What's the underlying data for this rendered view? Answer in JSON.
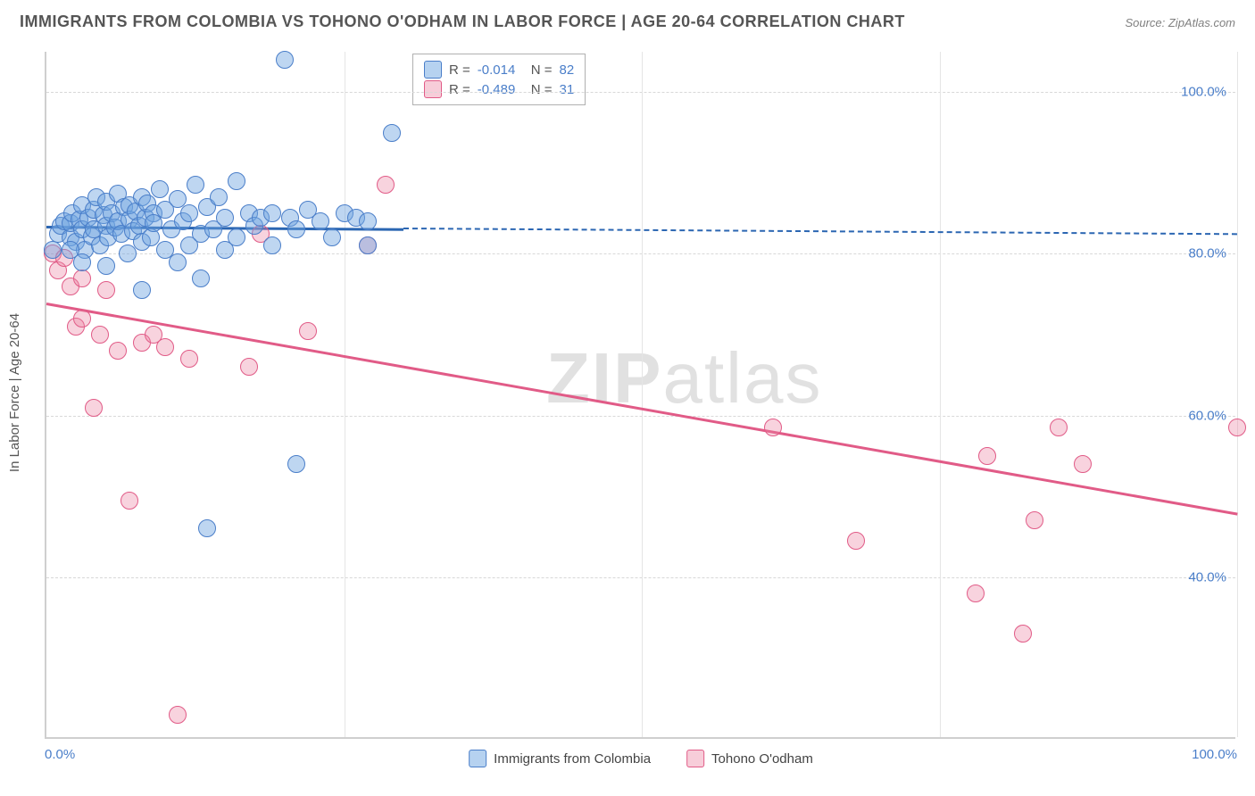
{
  "title": "IMMIGRANTS FROM COLOMBIA VS TOHONO O'ODHAM IN LABOR FORCE | AGE 20-64 CORRELATION CHART",
  "source": "Source: ZipAtlas.com",
  "y_axis_label": "In Labor Force | Age 20-64",
  "watermark_bold": "ZIP",
  "watermark_light": "atlas",
  "chart": {
    "type": "scatter",
    "xlim": [
      0,
      100
    ],
    "ylim": [
      20,
      105
    ],
    "y_ticks": [
      40,
      60,
      80,
      100
    ],
    "y_tick_labels": [
      "40.0%",
      "60.0%",
      "80.0%",
      "100.0%"
    ],
    "x_grid_positions": [
      25,
      50,
      75,
      100
    ],
    "x_tick_labels": {
      "left": "0.0%",
      "right": "100.0%"
    },
    "grid_color": "#e0e0e0",
    "background_color": "#ffffff",
    "marker_radius": 10,
    "colors": {
      "series_a_fill": "rgba(110,165,225,0.45)",
      "series_a_stroke": "#4a7ec9",
      "series_b_fill": "rgba(235,130,160,0.35)",
      "series_b_stroke": "#e15b87",
      "trend_a": "#2b66b2",
      "trend_b": "#e15b87",
      "tick_label": "#4a7ec9"
    },
    "legend_top": {
      "rows": [
        {
          "swatch": "blue",
          "r_label": "R =",
          "r": "-0.014",
          "n_label": "N =",
          "n": "82"
        },
        {
          "swatch": "pink",
          "r_label": "R =",
          "r": "-0.489",
          "n_label": "N =",
          "n": "31"
        }
      ]
    },
    "legend_bottom": [
      {
        "swatch": "blue",
        "label": "Immigrants from Colombia"
      },
      {
        "swatch": "pink",
        "label": "Tohono O'odham"
      }
    ],
    "series_a": {
      "name": "Immigrants from Colombia",
      "trend": {
        "x0": 0,
        "y0": 83.5,
        "x1": 30,
        "y1": 83.2,
        "solid_until_x": 30,
        "extend_to_x": 100,
        "extend_y": 82.5
      },
      "points": [
        [
          0.5,
          80.5
        ],
        [
          1,
          82.5
        ],
        [
          1.2,
          83.5
        ],
        [
          1.5,
          84
        ],
        [
          2,
          82
        ],
        [
          2,
          83.8
        ],
        [
          2.2,
          85
        ],
        [
          2.5,
          81.5
        ],
        [
          2.8,
          84.2
        ],
        [
          3,
          83
        ],
        [
          3,
          86
        ],
        [
          3.2,
          80.5
        ],
        [
          3.5,
          84.5
        ],
        [
          3.8,
          82.2
        ],
        [
          4,
          85.5
        ],
        [
          4,
          83
        ],
        [
          4.2,
          87
        ],
        [
          4.5,
          81
        ],
        [
          4.8,
          84.8
        ],
        [
          5,
          83.5
        ],
        [
          5,
          86.5
        ],
        [
          5.2,
          82
        ],
        [
          5.5,
          85
        ],
        [
          5.8,
          83.2
        ],
        [
          6,
          84
        ],
        [
          6,
          87.5
        ],
        [
          6.3,
          82.5
        ],
        [
          6.5,
          85.8
        ],
        [
          6.8,
          80
        ],
        [
          7,
          84.2
        ],
        [
          7,
          86
        ],
        [
          7.3,
          82.8
        ],
        [
          7.5,
          85.2
        ],
        [
          7.8,
          83.5
        ],
        [
          8,
          87
        ],
        [
          8,
          81.5
        ],
        [
          8.3,
          84.5
        ],
        [
          8.5,
          86.2
        ],
        [
          8.8,
          82
        ],
        [
          9,
          85
        ],
        [
          9,
          83.8
        ],
        [
          9.5,
          88
        ],
        [
          10,
          80.5
        ],
        [
          10,
          85.5
        ],
        [
          10.5,
          83
        ],
        [
          11,
          86.8
        ],
        [
          11,
          79
        ],
        [
          11.5,
          84
        ],
        [
          12,
          81
        ],
        [
          12,
          85
        ],
        [
          12.5,
          88.5
        ],
        [
          13,
          82.5
        ],
        [
          13,
          77
        ],
        [
          13.5,
          85.8
        ],
        [
          14,
          83
        ],
        [
          14.5,
          87
        ],
        [
          15,
          80.5
        ],
        [
          15,
          84.5
        ],
        [
          16,
          89
        ],
        [
          16,
          82
        ],
        [
          17,
          85
        ],
        [
          17.5,
          83.5
        ],
        [
          18,
          84.5
        ],
        [
          19,
          85
        ],
        [
          19,
          81
        ],
        [
          20,
          104
        ],
        [
          20.5,
          84.5
        ],
        [
          21,
          83
        ],
        [
          22,
          85.5
        ],
        [
          23,
          84
        ],
        [
          24,
          82
        ],
        [
          25,
          85
        ],
        [
          26,
          84.5
        ],
        [
          27,
          81
        ],
        [
          27,
          84
        ],
        [
          29,
          95
        ],
        [
          13.5,
          46
        ],
        [
          8,
          75.5
        ],
        [
          21,
          54
        ],
        [
          2,
          80.5
        ],
        [
          3,
          79
        ],
        [
          5,
          78.5
        ]
      ]
    },
    "series_b": {
      "name": "Tohono O'odham",
      "trend": {
        "x0": 0,
        "y0": 74,
        "x1": 100,
        "y1": 48
      },
      "points": [
        [
          0.5,
          80
        ],
        [
          1,
          78
        ],
        [
          1.5,
          79.5
        ],
        [
          2,
          76
        ],
        [
          2.5,
          71
        ],
        [
          3,
          77
        ],
        [
          3,
          72
        ],
        [
          4,
          61
        ],
        [
          4.5,
          70
        ],
        [
          5,
          75.5
        ],
        [
          6,
          68
        ],
        [
          7,
          49.5
        ],
        [
          8,
          69
        ],
        [
          9,
          70
        ],
        [
          10,
          68.5
        ],
        [
          11,
          23
        ],
        [
          12,
          67
        ],
        [
          17,
          66
        ],
        [
          18,
          82.5
        ],
        [
          22,
          70.5
        ],
        [
          27,
          81
        ],
        [
          28.5,
          88.5
        ],
        [
          61,
          58.5
        ],
        [
          68,
          44.5
        ],
        [
          78,
          38
        ],
        [
          79,
          55
        ],
        [
          82,
          33
        ],
        [
          83,
          47
        ],
        [
          85,
          58.5
        ],
        [
          87,
          54
        ],
        [
          100,
          58.5
        ]
      ]
    }
  }
}
